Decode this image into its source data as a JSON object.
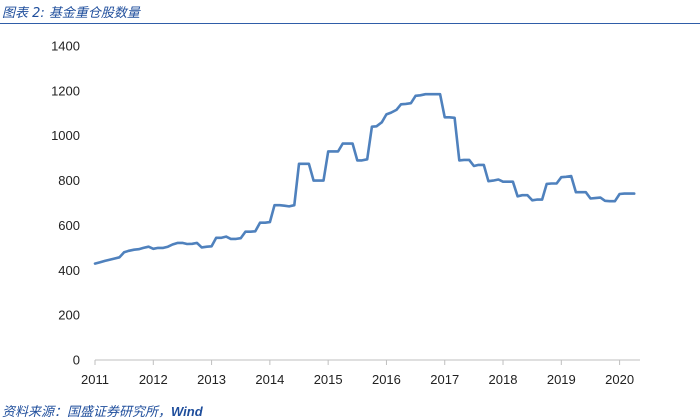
{
  "header": {
    "figure_title": "图表 2:  基金重仓股数量"
  },
  "footer": {
    "source_prefix": "资料来源：国盛证券研究所，",
    "source_brand": "Wind"
  },
  "chart_data": {
    "type": "line",
    "title": "",
    "xlabel": "",
    "ylabel": "",
    "xlim": [
      2011,
      2020.35
    ],
    "ylim": [
      0,
      1400
    ],
    "y_ticks": [
      0,
      200,
      400,
      600,
      800,
      1000,
      1200,
      1400
    ],
    "x_ticks": [
      2011,
      2012,
      2013,
      2014,
      2015,
      2016,
      2017,
      2018,
      2019,
      2020
    ],
    "x_tick_labels": [
      "2011",
      "2012",
      "2013",
      "2014",
      "2015",
      "2016",
      "2017",
      "2018",
      "2019",
      "2020"
    ],
    "y_tick_labels": [
      "0",
      "200",
      "400",
      "600",
      "800",
      "1000",
      "1200",
      "1400"
    ],
    "grid": false,
    "line_color": "#4f81bd",
    "series": [
      {
        "x": [
          2011.0,
          2011.08,
          2011.17,
          2011.25,
          2011.33,
          2011.42,
          2011.5,
          2011.58,
          2011.67,
          2011.75,
          2011.83,
          2011.92,
          2012.0,
          2012.08,
          2012.17,
          2012.25,
          2012.33,
          2012.42,
          2012.5,
          2012.58,
          2012.67,
          2012.75,
          2012.83,
          2012.92,
          2013.0,
          2013.08,
          2013.17,
          2013.25,
          2013.33,
          2013.42,
          2013.5,
          2013.58,
          2013.67,
          2013.75,
          2013.83,
          2013.92,
          2014.0,
          2014.08,
          2014.17,
          2014.25,
          2014.33,
          2014.42,
          2014.5,
          2014.58,
          2014.67,
          2014.75,
          2014.83,
          2014.92,
          2015.0,
          2015.08,
          2015.17,
          2015.25,
          2015.33,
          2015.42,
          2015.5,
          2015.58,
          2015.67,
          2015.75,
          2015.83,
          2015.92,
          2016.0,
          2016.08,
          2016.17,
          2016.25,
          2016.33,
          2016.42,
          2016.5,
          2016.58,
          2016.67,
          2016.75,
          2016.83,
          2016.92,
          2017.0,
          2017.08,
          2017.17,
          2017.25,
          2017.33,
          2017.42,
          2017.5,
          2017.58,
          2017.67,
          2017.75,
          2017.83,
          2017.92,
          2018.0,
          2018.08,
          2018.17,
          2018.25,
          2018.33,
          2018.42,
          2018.5,
          2018.58,
          2018.67,
          2018.75,
          2018.83,
          2018.92,
          2019.0,
          2019.08,
          2019.17,
          2019.25,
          2019.33,
          2019.42,
          2019.5,
          2019.58,
          2019.67,
          2019.75,
          2019.83,
          2019.92,
          2020.0,
          2020.08,
          2020.17,
          2020.25
        ],
        "y": [
          430,
          435,
          442,
          447,
          452,
          458,
          480,
          487,
          492,
          494,
          500,
          505,
          496,
          500,
          500,
          505,
          515,
          522,
          522,
          517,
          518,
          522,
          502,
          505,
          507,
          545,
          545,
          550,
          540,
          540,
          543,
          572,
          572,
          574,
          612,
          612,
          615,
          690,
          690,
          688,
          685,
          690,
          875,
          875,
          875,
          800,
          800,
          800,
          930,
          930,
          930,
          965,
          965,
          965,
          890,
          890,
          895,
          1040,
          1042,
          1060,
          1095,
          1103,
          1115,
          1140,
          1142,
          1145,
          1178,
          1180,
          1185,
          1185,
          1185,
          1185,
          1082,
          1082,
          1080,
          890,
          892,
          892,
          865,
          870,
          870,
          797,
          800,
          805,
          795,
          795,
          795,
          730,
          735,
          735,
          712,
          715,
          715,
          785,
          787,
          787,
          815,
          817,
          820,
          748,
          748,
          748,
          720,
          722,
          724,
          710,
          708,
          708,
          740,
          742,
          742,
          742
        ]
      }
    ]
  }
}
